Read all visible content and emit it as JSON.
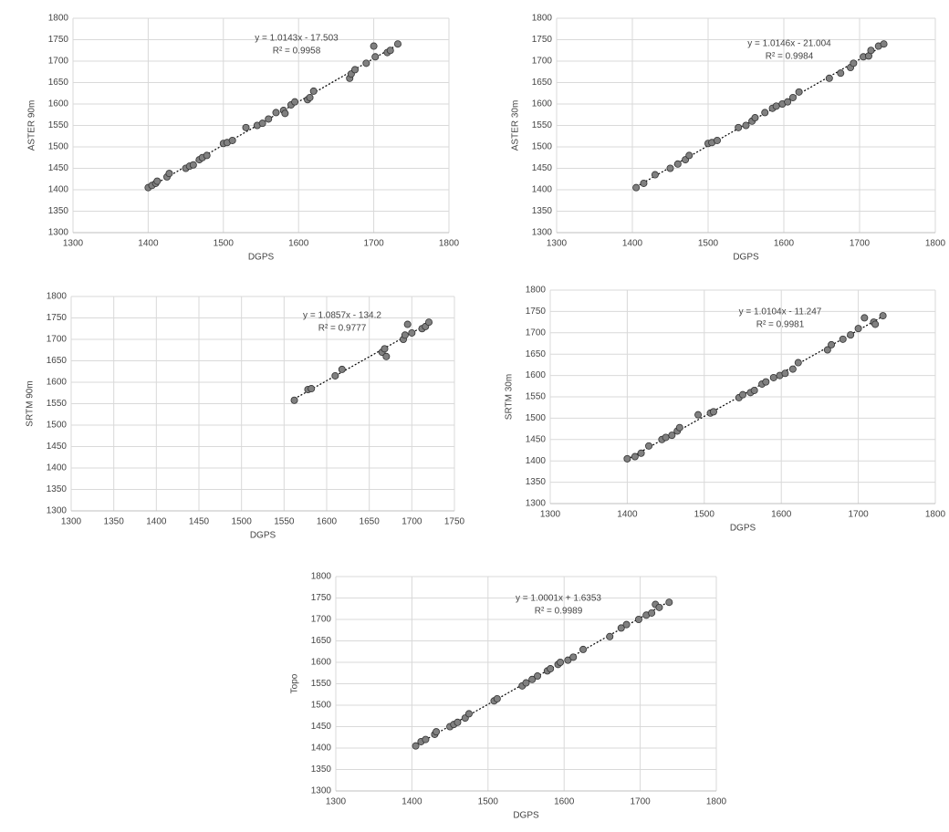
{
  "chart_data": [
    {
      "type": "scatter",
      "x_label": "DGPS",
      "y_label": "ASTER 90m",
      "equation": "y = 1.0143x - 17.503",
      "r_squared": "R² = 0.9958",
      "color": "#808080",
      "grid": true,
      "xlim": [
        1300,
        1800
      ],
      "ylim": [
        1300,
        1800
      ],
      "xticks": [
        1300,
        1400,
        1500,
        1600,
        1700,
        1800
      ],
      "yticks": [
        1300,
        1350,
        1400,
        1450,
        1500,
        1550,
        1600,
        1650,
        1700,
        1750,
        1800
      ],
      "x": [
        1400,
        1405,
        1410,
        1412,
        1425,
        1428,
        1450,
        1455,
        1460,
        1468,
        1472,
        1478,
        1500,
        1505,
        1512,
        1530,
        1545,
        1552,
        1560,
        1570,
        1580,
        1582,
        1590,
        1595,
        1612,
        1615,
        1620,
        1668,
        1670,
        1675,
        1690,
        1700,
        1702,
        1718,
        1722,
        1732
      ],
      "values": [
        1405,
        1410,
        1415,
        1420,
        1430,
        1438,
        1450,
        1455,
        1458,
        1470,
        1475,
        1480,
        1508,
        1510,
        1515,
        1545,
        1550,
        1555,
        1565,
        1580,
        1585,
        1578,
        1598,
        1605,
        1610,
        1615,
        1630,
        1660,
        1670,
        1680,
        1695,
        1735,
        1710,
        1720,
        1725,
        1740
      ]
    },
    {
      "type": "scatter",
      "x_label": "DGPS",
      "y_label": "ASTER 30m",
      "equation": "y = 1.0146x - 21.004",
      "r_squared": "R² = 0.9984",
      "color": "#808080",
      "grid": true,
      "xlim": [
        1300,
        1800
      ],
      "ylim": [
        1300,
        1800
      ],
      "xticks": [
        1300,
        1400,
        1500,
        1600,
        1700,
        1800
      ],
      "yticks": [
        1300,
        1350,
        1400,
        1450,
        1500,
        1550,
        1600,
        1650,
        1700,
        1750,
        1800
      ],
      "x": [
        1405,
        1415,
        1430,
        1450,
        1460,
        1470,
        1475,
        1500,
        1505,
        1512,
        1540,
        1550,
        1558,
        1562,
        1575,
        1585,
        1590,
        1598,
        1605,
        1612,
        1620,
        1660,
        1675,
        1688,
        1692,
        1705,
        1712,
        1715,
        1725,
        1732
      ],
      "values": [
        1405,
        1415,
        1435,
        1450,
        1460,
        1470,
        1480,
        1508,
        1510,
        1515,
        1545,
        1550,
        1560,
        1568,
        1580,
        1590,
        1595,
        1600,
        1605,
        1615,
        1628,
        1660,
        1672,
        1685,
        1695,
        1710,
        1712,
        1725,
        1735,
        1740
      ]
    },
    {
      "type": "scatter",
      "x_label": "DGPS",
      "y_label": "SRTM 90m",
      "equation": "y = 1.0857x - 134.2",
      "r_squared": "R² = 0.9777",
      "color": "#808080",
      "grid": true,
      "xlim": [
        1300,
        1750
      ],
      "ylim": [
        1300,
        1800
      ],
      "xticks": [
        1300,
        1350,
        1400,
        1450,
        1500,
        1550,
        1600,
        1650,
        1700,
        1750
      ],
      "yticks": [
        1300,
        1350,
        1400,
        1450,
        1500,
        1550,
        1600,
        1650,
        1700,
        1750,
        1800
      ],
      "x": [
        1562,
        1578,
        1582,
        1610,
        1618,
        1665,
        1668,
        1670,
        1690,
        1692,
        1695,
        1700,
        1712,
        1716,
        1720
      ],
      "values": [
        1558,
        1583,
        1585,
        1615,
        1630,
        1670,
        1678,
        1660,
        1700,
        1710,
        1735,
        1715,
        1725,
        1730,
        1740
      ]
    },
    {
      "type": "scatter",
      "x_label": "DGPS",
      "y_label": "SRTM 30m",
      "equation": "y = 1.0104x - 11.247",
      "r_squared": "R² = 0.9981",
      "color": "#808080",
      "grid": true,
      "xlim": [
        1300,
        1800
      ],
      "ylim": [
        1300,
        1800
      ],
      "xticks": [
        1300,
        1400,
        1500,
        1600,
        1700,
        1800
      ],
      "yticks": [
        1300,
        1350,
        1400,
        1450,
        1500,
        1550,
        1600,
        1650,
        1700,
        1750,
        1800
      ],
      "x": [
        1400,
        1410,
        1418,
        1428,
        1445,
        1450,
        1458,
        1465,
        1468,
        1492,
        1508,
        1512,
        1545,
        1550,
        1560,
        1565,
        1575,
        1580,
        1590,
        1598,
        1605,
        1615,
        1622,
        1660,
        1665,
        1680,
        1690,
        1700,
        1708,
        1720,
        1722,
        1732
      ],
      "values": [
        1405,
        1410,
        1418,
        1435,
        1450,
        1455,
        1460,
        1470,
        1478,
        1508,
        1512,
        1515,
        1548,
        1555,
        1560,
        1565,
        1580,
        1585,
        1595,
        1600,
        1605,
        1615,
        1630,
        1660,
        1672,
        1685,
        1695,
        1710,
        1735,
        1725,
        1720,
        1740
      ]
    },
    {
      "type": "scatter",
      "x_label": "DGPS",
      "y_label": "Topo",
      "equation": "y = 1.0001x + 1.6353",
      "r_squared": "R² = 0.9989",
      "color": "#808080",
      "grid": true,
      "xlim": [
        1300,
        1800
      ],
      "ylim": [
        1300,
        1800
      ],
      "xticks": [
        1300,
        1400,
        1500,
        1600,
        1700,
        1800
      ],
      "yticks": [
        1300,
        1350,
        1400,
        1450,
        1500,
        1550,
        1600,
        1650,
        1700,
        1750,
        1800
      ],
      "x": [
        1405,
        1412,
        1418,
        1430,
        1432,
        1450,
        1455,
        1460,
        1470,
        1475,
        1508,
        1512,
        1545,
        1550,
        1558,
        1565,
        1578,
        1582,
        1592,
        1595,
        1605,
        1612,
        1625,
        1660,
        1675,
        1682,
        1698,
        1708,
        1715,
        1720,
        1725,
        1738
      ],
      "values": [
        1405,
        1415,
        1420,
        1432,
        1438,
        1450,
        1455,
        1460,
        1470,
        1480,
        1510,
        1515,
        1545,
        1552,
        1560,
        1568,
        1580,
        1585,
        1595,
        1600,
        1605,
        1612,
        1630,
        1660,
        1680,
        1688,
        1700,
        1710,
        1715,
        1735,
        1728,
        1740
      ]
    }
  ]
}
